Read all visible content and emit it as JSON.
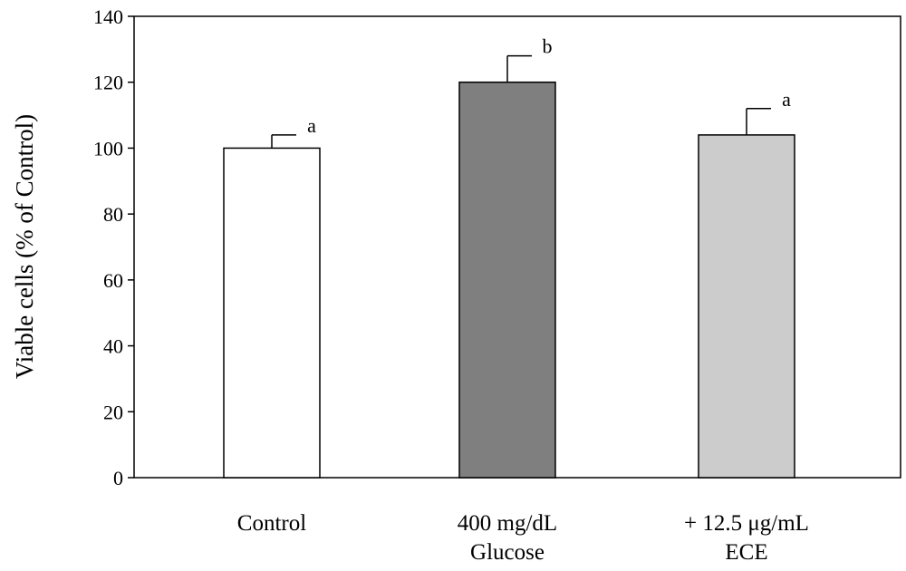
{
  "chart_data": {
    "type": "bar",
    "title": "",
    "xlabel": "",
    "ylabel": "Viable cells (% of Control)",
    "ylim": [
      0,
      140
    ],
    "yticks": [
      0,
      20,
      40,
      60,
      80,
      100,
      120,
      140
    ],
    "grid": false,
    "categories": [
      {
        "lines": [
          "Control"
        ]
      },
      {
        "lines": [
          "400 mg/dL",
          "Glucose"
        ]
      },
      {
        "lines": [
          "+ 12.5 μg/mL",
          "ECE"
        ]
      }
    ],
    "values": [
      100,
      120,
      104
    ],
    "errors": [
      4,
      8,
      8
    ],
    "significance": [
      "a",
      "b",
      "a"
    ],
    "colors": [
      "#ffffff",
      "#7f7f7f",
      "#cccccc"
    ],
    "edge_color": "#000000"
  }
}
